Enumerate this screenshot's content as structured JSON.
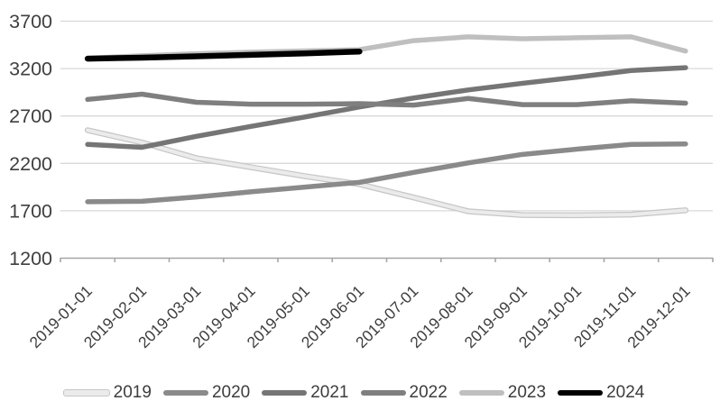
{
  "chart_data": {
    "type": "line",
    "title": "",
    "xlabel": "",
    "ylabel": "",
    "categories": [
      "2019-01-01",
      "2019-02-01",
      "2019-03-01",
      "2019-04-01",
      "2019-05-01",
      "2019-06-01",
      "2019-07-01",
      "2019-08-01",
      "2019-09-01",
      "2019-10-01",
      "2019-11-01",
      "2019-12-01"
    ],
    "y_ticks": [
      1200,
      1700,
      2200,
      2700,
      3200,
      3700
    ],
    "ylim": [
      1200,
      3700
    ],
    "grid": true,
    "legend_position": "bottom",
    "series": [
      {
        "name": "2019",
        "color": "#ebebeb",
        "edge_color": "#c6c6c6",
        "values": [
          2545,
          2415,
          2250,
          2155,
          2060,
          1975,
          1835,
          1690,
          1650,
          1648,
          1655,
          1700
        ]
      },
      {
        "name": "2020",
        "color": "#8a8a8a",
        "values": [
          1790,
          1795,
          1840,
          1895,
          1945,
          1995,
          2100,
          2200,
          2290,
          2345,
          2395,
          2400
        ]
      },
      {
        "name": "2021",
        "color": "#757575",
        "values": [
          2395,
          2365,
          2480,
          2585,
          2685,
          2790,
          2885,
          2970,
          3040,
          3105,
          3175,
          3205
        ]
      },
      {
        "name": "2022",
        "color": "#7f7f7f",
        "values": [
          2870,
          2925,
          2840,
          2820,
          2820,
          2825,
          2810,
          2880,
          2815,
          2815,
          2855,
          2830
        ]
      },
      {
        "name": "2023",
        "color": "#bfbfbf",
        "values": [
          3305,
          3330,
          3352,
          3368,
          3382,
          3395,
          3490,
          3530,
          3510,
          3520,
          3530,
          3380
        ]
      },
      {
        "name": "2024",
        "color": "#000000",
        "values": [
          3300,
          3310,
          3325,
          3340,
          3355,
          3375
        ]
      }
    ]
  },
  "colors": {
    "gridline": "#d9d9d9",
    "axis_line": "#a6a6a6",
    "tick_label": "#3f3f3f"
  }
}
